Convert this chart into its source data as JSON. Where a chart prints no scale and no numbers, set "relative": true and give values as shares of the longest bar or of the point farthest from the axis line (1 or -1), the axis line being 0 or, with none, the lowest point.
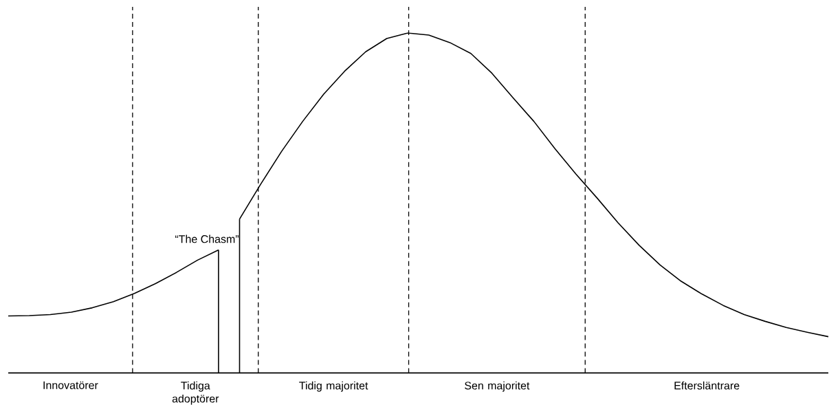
{
  "chart_data": {
    "type": "line",
    "relative": true,
    "line_style": "solid",
    "marker": "none",
    "categories": [
      null,
      null,
      null,
      null,
      null,
      null,
      null,
      null,
      null,
      null,
      null,
      null,
      null,
      null,
      null,
      null,
      null,
      null,
      null,
      null,
      null,
      null,
      null,
      null,
      null,
      null,
      null,
      null,
      null,
      null,
      null,
      null,
      null,
      null,
      null,
      null,
      null,
      null,
      null,
      null
    ],
    "series": [
      {
        "color": "#000000",
        "values": [
          0.168,
          0.169,
          0.172,
          0.179,
          0.192,
          0.21,
          0.234,
          0.263,
          0.296,
          0.332,
          0.362,
          null,
          null,
          null,
          null,
          null,
          null,
          null,
          null,
          null,
          null,
          null,
          null,
          null,
          null,
          null,
          null,
          null,
          null,
          null,
          null,
          null,
          null,
          null,
          null,
          null,
          null,
          null,
          null,
          null
        ]
      },
      {
        "color": "#000000",
        "values": [
          null,
          null,
          null,
          null,
          null,
          null,
          null,
          null,
          null,
          null,
          null,
          0.453,
          0.555,
          0.652,
          0.74,
          0.82,
          0.888,
          0.945,
          0.984,
          1.0,
          0.994,
          0.972,
          0.94,
          0.882,
          0.81,
          0.74,
          0.66,
          0.585,
          0.515,
          0.442,
          0.376,
          0.318,
          0.27,
          0.232,
          0.199,
          0.172,
          0.152,
          0.134,
          0.12,
          0.107
        ]
      }
    ],
    "grid": "x",
    "annotations": [
      "Innovatörer",
      "Tidiga adoptörer",
      "Tidig majoritet",
      "Sen majoritet",
      "Eftersläntrare",
      "“The Chasm”"
    ]
  }
}
